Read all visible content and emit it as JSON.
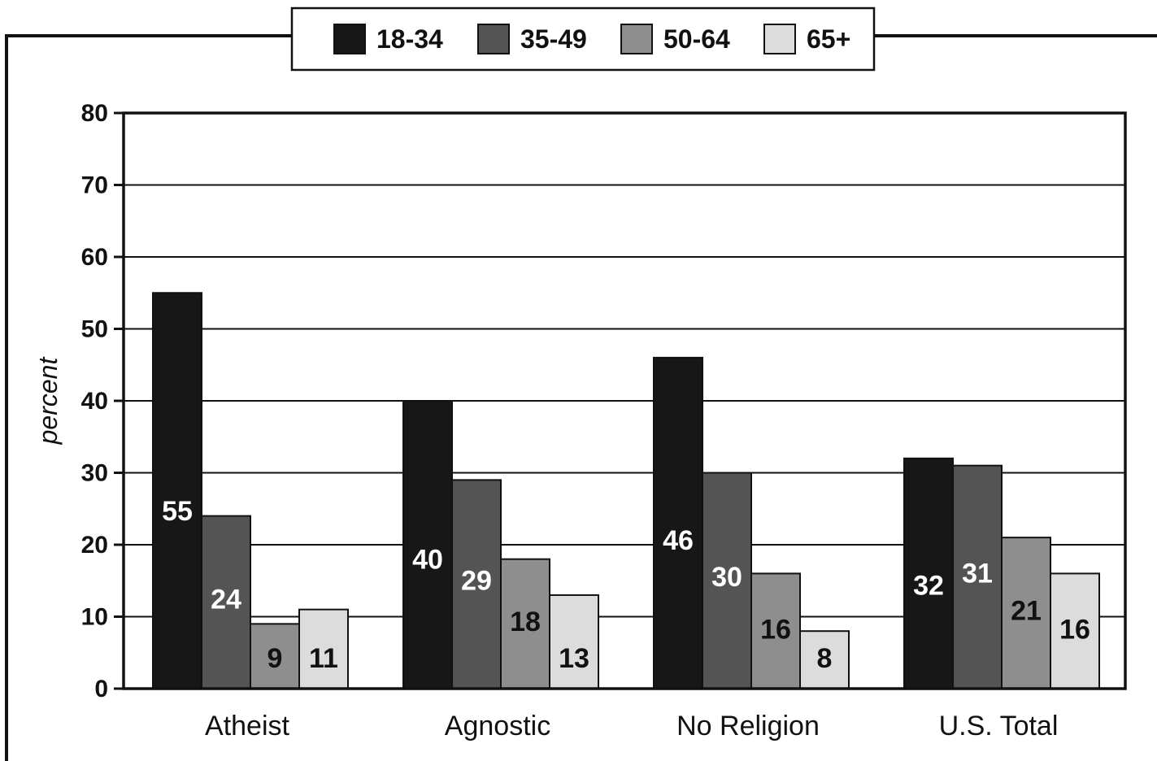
{
  "chart_data": {
    "type": "bar",
    "categories": [
      "Atheist",
      "Agnostic",
      "No Religion",
      "U.S. Total"
    ],
    "series": [
      {
        "name": "18-34",
        "color": "#171717",
        "values": [
          55,
          40,
          46,
          32
        ]
      },
      {
        "name": "35-49",
        "color": "#545454",
        "values": [
          24,
          29,
          30,
          31
        ]
      },
      {
        "name": "50-64",
        "color": "#8e8e8e",
        "values": [
          9,
          18,
          16,
          21
        ]
      },
      {
        "name": "65+",
        "color": "#dcdcdc",
        "values": [
          11,
          13,
          8,
          16
        ]
      }
    ],
    "data_labels": [
      [
        "55",
        "24",
        "9",
        "11"
      ],
      [
        "40",
        "29",
        "18",
        "13"
      ],
      [
        "46",
        "30",
        "16",
        "8"
      ],
      [
        "32",
        "31",
        "21",
        "16"
      ]
    ],
    "ylabel": "percent",
    "xlabel": "",
    "ylim": [
      0,
      80
    ],
    "yticks": [
      0,
      10,
      20,
      30,
      40,
      50,
      60,
      70,
      80
    ],
    "ytick_labels": [
      "0",
      "10",
      "20",
      "30",
      "40",
      "50",
      "60",
      "70",
      "80"
    ],
    "grid": true,
    "legend_position": "top"
  }
}
